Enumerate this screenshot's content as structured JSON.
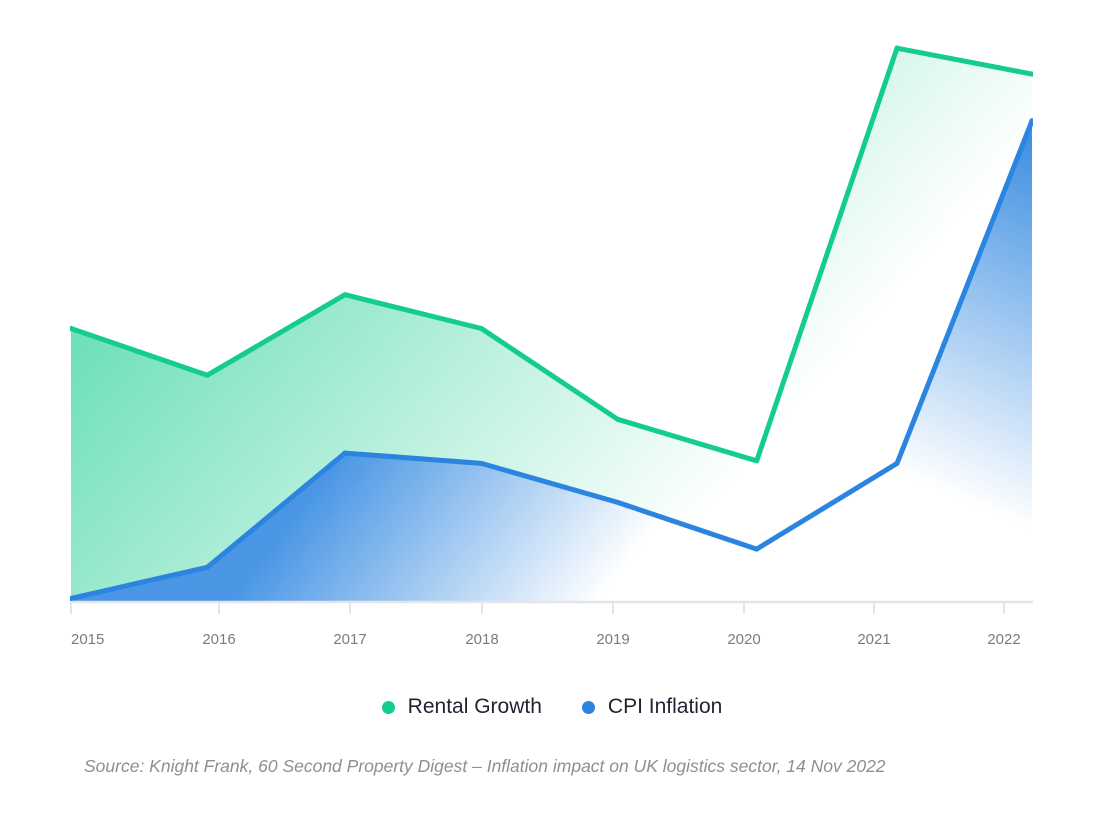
{
  "colors": {
    "rental": "#14cc8f",
    "cpi": "#2a84e0",
    "axis": "#e3e5e8"
  },
  "chart_data": {
    "type": "area",
    "categories": [
      "2015",
      "2016",
      "2017",
      "2018",
      "2019",
      "2020",
      "2021",
      "2022"
    ],
    "x": [
      2014.87,
      2015.91,
      2016.96,
      2018.0,
      2019.04,
      2020.1,
      2021.17,
      2022.2
    ],
    "series": [
      {
        "name": "Rental Growth",
        "values": [
          10.5,
          8.7,
          11.8,
          10.5,
          7.0,
          5.4,
          21.3,
          20.3
        ]
      },
      {
        "name": "CPI Inflation",
        "values": [
          0.1,
          1.3,
          5.7,
          5.3,
          3.8,
          2.0,
          5.3,
          18.5
        ]
      }
    ],
    "xlim": [
      2014.87,
      2022.2
    ],
    "ylim": [
      0,
      22
    ],
    "grid": false,
    "legend": "bottom-center",
    "source": "Source: Knight Frank, 60 Second Property Digest – Inflation impact on UK logistics sector, 14 Nov 2022"
  }
}
